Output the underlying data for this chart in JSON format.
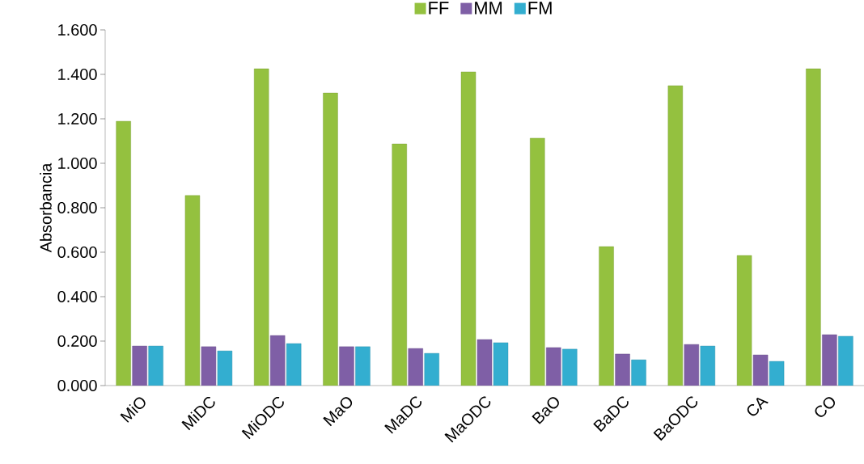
{
  "chart_data": {
    "type": "bar",
    "ylabel": "Absorbancia",
    "categories": [
      "MiO",
      "MiDC",
      "MiODC",
      "MaO",
      "MaDC",
      "MaODC",
      "BaO",
      "BaDC",
      "BaODC",
      "CA",
      "CO"
    ],
    "series": [
      {
        "name": "FF",
        "color": "#94c13f",
        "values": [
          1.189,
          0.855,
          1.425,
          1.316,
          1.087,
          1.411,
          1.113,
          0.625,
          1.349,
          0.585,
          1.425
        ]
      },
      {
        "name": "MM",
        "color": "#7f5fa6",
        "values": [
          0.178,
          0.175,
          0.225,
          0.175,
          0.167,
          0.207,
          0.171,
          0.142,
          0.185,
          0.138,
          0.229
        ]
      },
      {
        "name": "FM",
        "color": "#33aed0",
        "values": [
          0.178,
          0.156,
          0.189,
          0.175,
          0.145,
          0.193,
          0.164,
          0.116,
          0.178,
          0.109,
          0.222
        ]
      }
    ],
    "ylim": [
      0,
      1.6
    ],
    "yticks": [
      {
        "value": 0,
        "label": "0.000"
      },
      {
        "value": 0.2,
        "label": "0.200"
      },
      {
        "value": 0.4,
        "label": "0.400"
      },
      {
        "value": 0.6,
        "label": "0.600"
      },
      {
        "value": 0.8,
        "label": "0.800"
      },
      {
        "value": 1.0,
        "label": "1.000"
      },
      {
        "value": 1.2,
        "label": "1.200"
      },
      {
        "value": 1.4,
        "label": "1.400"
      },
      {
        "value": 1.6,
        "label": "1.600"
      }
    ],
    "legend": "top",
    "grid": false
  }
}
